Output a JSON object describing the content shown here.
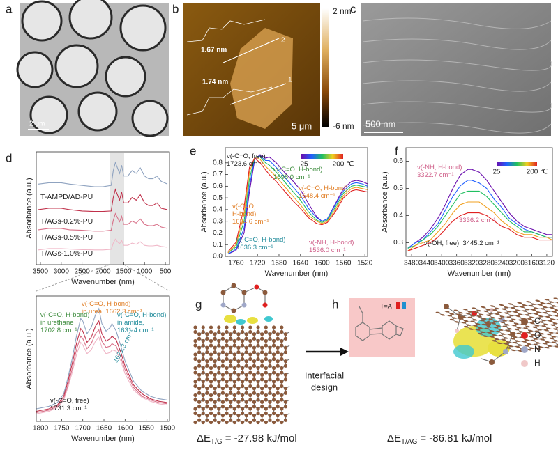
{
  "panels": {
    "a": {
      "label": "a",
      "scale": "2 μm"
    },
    "b": {
      "label": "b",
      "scale": "5 μm",
      "colorbar_max": "2 nm",
      "colorbar_min": "-6 nm",
      "height_1": "1.67 nm",
      "height_2": "1.74 nm",
      "line_1": "1",
      "line_2": "2"
    },
    "c": {
      "label": "c",
      "scale": "500 nm"
    },
    "d": {
      "label": "d"
    },
    "e": {
      "label": "e"
    },
    "f": {
      "label": "f"
    },
    "g": {
      "label": "g",
      "energy": {
        "symbol": "ΔE",
        "subscript": "T/G",
        "value": "= -27.98 kJ/mol"
      }
    },
    "arrow_text": [
      "Interfacial",
      "design"
    ],
    "h": {
      "label": "h",
      "inset": "T=A",
      "energy": {
        "symbol": "ΔE",
        "subscript": "T/AG",
        "value": "= -86.81 kJ/mol"
      },
      "legend": [
        "C",
        "O",
        "N",
        "H"
      ]
    }
  },
  "chart_data": [
    {
      "type": "line",
      "x_label": "Wavenumber (nm)",
      "y_label": "Absorbance (a.u.)",
      "x": [
        3550,
        3300,
        3000,
        2800,
        2500,
        2200,
        2000,
        1800,
        1750,
        1700,
        1650,
        1600,
        1550,
        1500,
        1400,
        1300,
        1200,
        1100,
        1000,
        900,
        800,
        700,
        600,
        450
      ],
      "xlim": [
        3600,
        400
      ],
      "xticks": [
        3500,
        3000,
        2500,
        2000,
        1500,
        1000,
        500
      ],
      "ylim": [
        0,
        4.2
      ],
      "series": [
        {
          "name": "T-AMPD/AD-PU",
          "color": "#8fa3c0",
          "values": [
            3.0,
            3.05,
            3.05,
            3.0,
            2.95,
            2.9,
            2.9,
            2.95,
            3.5,
            3.8,
            3.6,
            3.4,
            3.7,
            3.3,
            3.3,
            3.5,
            3.4,
            3.6,
            3.3,
            3.2,
            3.2,
            3.3,
            3.1,
            3.0
          ]
        },
        {
          "name": "T/AGs-0.2%-PU",
          "color": "#c0304a",
          "values": [
            2.05,
            2.1,
            2.1,
            2.05,
            2.0,
            1.98,
            1.98,
            2.0,
            2.5,
            2.8,
            2.6,
            2.4,
            2.7,
            2.3,
            2.3,
            2.5,
            2.4,
            2.6,
            2.3,
            2.2,
            2.2,
            2.3,
            2.1,
            2.05
          ]
        },
        {
          "name": "T/AGs-0.5%-PU",
          "color": "#d87088",
          "values": [
            1.3,
            1.35,
            1.35,
            1.3,
            1.28,
            1.25,
            1.25,
            1.28,
            1.65,
            1.9,
            1.75,
            1.6,
            1.8,
            1.5,
            1.5,
            1.62,
            1.55,
            1.7,
            1.5,
            1.45,
            1.45,
            1.5,
            1.4,
            1.35
          ]
        },
        {
          "name": "T/AGs-1.0%-PU",
          "color": "#f0b8c8",
          "values": [
            0.55,
            0.6,
            0.6,
            0.58,
            0.56,
            0.55,
            0.55,
            0.57,
            0.8,
            0.95,
            0.85,
            0.78,
            0.9,
            0.72,
            0.72,
            0.8,
            0.76,
            0.85,
            0.72,
            0.7,
            0.7,
            0.72,
            0.68,
            0.65
          ]
        }
      ]
    },
    {
      "type": "line",
      "x_label": "Wavenumber (nm)",
      "y_label": "Absorbance (a.u.)",
      "x": [
        1810,
        1780,
        1760,
        1745,
        1735,
        1725,
        1715,
        1705,
        1700,
        1690,
        1680,
        1670,
        1662,
        1655,
        1645,
        1635,
        1631,
        1621,
        1610,
        1600,
        1580,
        1560,
        1540,
        1520,
        1500
      ],
      "xlim": [
        1810,
        1495
      ],
      "xticks": [
        1800,
        1750,
        1700,
        1650,
        1600,
        1550,
        1500
      ],
      "ylim": [
        0,
        1
      ],
      "series": [
        {
          "color": "#8fa3c0",
          "values": [
            0.1,
            0.12,
            0.15,
            0.22,
            0.35,
            0.5,
            0.68,
            0.82,
            0.8,
            0.7,
            0.75,
            0.85,
            0.9,
            0.78,
            0.72,
            0.75,
            0.78,
            0.72,
            0.6,
            0.48,
            0.32,
            0.24,
            0.2,
            0.18,
            0.17
          ]
        },
        {
          "color": "#c0304a",
          "values": [
            0.08,
            0.1,
            0.13,
            0.2,
            0.32,
            0.46,
            0.62,
            0.74,
            0.72,
            0.63,
            0.67,
            0.76,
            0.8,
            0.7,
            0.64,
            0.66,
            0.68,
            0.65,
            0.55,
            0.44,
            0.29,
            0.22,
            0.18,
            0.16,
            0.15
          ]
        },
        {
          "color": "#d87088",
          "values": [
            0.07,
            0.09,
            0.12,
            0.18,
            0.29,
            0.42,
            0.57,
            0.68,
            0.66,
            0.58,
            0.62,
            0.7,
            0.73,
            0.64,
            0.59,
            0.6,
            0.62,
            0.6,
            0.51,
            0.41,
            0.27,
            0.2,
            0.17,
            0.15,
            0.14
          ]
        },
        {
          "color": "#f0b8c8",
          "values": [
            0.06,
            0.08,
            0.11,
            0.17,
            0.27,
            0.39,
            0.53,
            0.63,
            0.61,
            0.54,
            0.57,
            0.64,
            0.67,
            0.59,
            0.54,
            0.55,
            0.57,
            0.56,
            0.48,
            0.38,
            0.25,
            0.19,
            0.16,
            0.14,
            0.13
          ]
        }
      ],
      "annotations": [
        {
          "color": "#3a8a3a",
          "lines": [
            "ν(-C=O, H-bond)",
            "in urethane",
            "1702.8 cm⁻¹"
          ]
        },
        {
          "color": "#e07b20",
          "lines": [
            "ν(-C=O, H-bond)",
            "in urea, 1662.3 cm⁻¹"
          ]
        },
        {
          "color": "#1f8a9a",
          "lines": [
            "ν(-C=O, H-bond)",
            "in amide,",
            "1631.4 cm⁻¹"
          ]
        },
        {
          "color": "#1f8a9a",
          "lines": [
            "1621.3 cm⁻¹"
          ]
        },
        {
          "color": "#222222",
          "lines": [
            "ν(-C=O, free)",
            "1731.3 cm⁻¹"
          ]
        }
      ]
    },
    {
      "type": "line",
      "x_label": "Wavenumber (nm)",
      "y_label": "Absorbance (a.u.)",
      "colorbar_labels": [
        "25",
        "200 ℃"
      ],
      "x": [
        1775,
        1760,
        1745,
        1735,
        1725,
        1715,
        1705,
        1698,
        1685,
        1670,
        1655,
        1640,
        1625,
        1610,
        1600,
        1590,
        1575,
        1560,
        1545,
        1536,
        1525,
        1515
      ],
      "xlim": [
        1780,
        1515
      ],
      "xticks": [
        1760,
        1720,
        1680,
        1640,
        1600,
        1560,
        1520
      ],
      "ylim": [
        0,
        0.93
      ],
      "yticks": [
        {
          "value": 0,
          "label": "0.0"
        },
        0.1,
        0.2,
        0.3,
        0.4,
        0.5,
        0.6,
        0.7,
        0.8
      ],
      "series": [
        {
          "color": "#6a0dad",
          "values": [
            0.02,
            0.05,
            0.2,
            0.55,
            0.83,
            0.87,
            0.84,
            0.85,
            0.8,
            0.72,
            0.65,
            0.57,
            0.45,
            0.34,
            0.3,
            0.32,
            0.45,
            0.58,
            0.64,
            0.65,
            0.64,
            0.62
          ]
        },
        {
          "color": "#2060ff",
          "values": [
            0.02,
            0.06,
            0.24,
            0.6,
            0.84,
            0.86,
            0.82,
            0.82,
            0.76,
            0.68,
            0.6,
            0.52,
            0.41,
            0.33,
            0.3,
            0.32,
            0.44,
            0.56,
            0.62,
            0.63,
            0.62,
            0.6
          ]
        },
        {
          "color": "#20c060",
          "values": [
            0.03,
            0.08,
            0.3,
            0.66,
            0.85,
            0.85,
            0.8,
            0.78,
            0.72,
            0.64,
            0.56,
            0.48,
            0.38,
            0.31,
            0.29,
            0.31,
            0.42,
            0.54,
            0.6,
            0.61,
            0.6,
            0.59
          ]
        },
        {
          "color": "#f0a020",
          "values": [
            0.03,
            0.1,
            0.36,
            0.72,
            0.85,
            0.83,
            0.77,
            0.74,
            0.68,
            0.6,
            0.52,
            0.44,
            0.35,
            0.3,
            0.28,
            0.3,
            0.4,
            0.52,
            0.58,
            0.59,
            0.58,
            0.57
          ]
        },
        {
          "color": "#e02020",
          "values": [
            0.04,
            0.12,
            0.42,
            0.76,
            0.84,
            0.8,
            0.74,
            0.7,
            0.64,
            0.56,
            0.48,
            0.41,
            0.33,
            0.28,
            0.27,
            0.29,
            0.38,
            0.5,
            0.56,
            0.57,
            0.56,
            0.55
          ]
        }
      ],
      "annotations": [
        {
          "color": "#222222",
          "lines": [
            "ν(-C=O, free)",
            "1723.6 cm⁻¹"
          ]
        },
        {
          "color": "#3a8a3a",
          "lines": [
            "ν(-C=O, H-bond)",
            "1698.0 cm⁻¹"
          ]
        },
        {
          "color": "#e07b20",
          "lines": [
            "ν(-C=O, H-bond)",
            "1648.4 cm⁻¹"
          ]
        },
        {
          "color": "#e07b20",
          "lines": [
            "ν(-C=O,",
            "H-bond)",
            "1654.6 cm⁻¹"
          ]
        },
        {
          "color": "#1f8a9a",
          "lines": [
            "ν(-C=O, H-bond)",
            "1636.3 cm⁻¹"
          ]
        },
        {
          "color": "#d0608a",
          "lines": [
            "ν(-NH, H-bond)",
            "1536.0 cm⁻¹"
          ]
        }
      ]
    },
    {
      "type": "line",
      "x_label": "Wavenumber (nm)",
      "y_label": "Absorbance (a.u.)",
      "colorbar_labels": [
        "25",
        "200 ℃"
      ],
      "x": [
        3490,
        3470,
        3450,
        3430,
        3410,
        3390,
        3370,
        3350,
        3330,
        3320,
        3300,
        3280,
        3260,
        3240,
        3220,
        3200,
        3180,
        3160,
        3140,
        3120,
        3105
      ],
      "xlim": [
        3495,
        3105
      ],
      "xticks": [
        3480,
        3440,
        3400,
        3360,
        3320,
        3280,
        3240,
        3200,
        3160,
        3120
      ],
      "ylim": [
        0.25,
        0.65
      ],
      "yticks": [
        0.3,
        0.4,
        0.5,
        0.6
      ],
      "series": [
        {
          "color": "#6a0dad",
          "values": [
            0.28,
            0.3,
            0.32,
            0.35,
            0.39,
            0.44,
            0.5,
            0.55,
            0.57,
            0.57,
            0.56,
            0.53,
            0.49,
            0.45,
            0.41,
            0.38,
            0.36,
            0.35,
            0.34,
            0.33,
            0.33
          ]
        },
        {
          "color": "#2060ff",
          "values": [
            0.28,
            0.3,
            0.31,
            0.34,
            0.37,
            0.42,
            0.47,
            0.51,
            0.53,
            0.53,
            0.52,
            0.5,
            0.46,
            0.43,
            0.39,
            0.37,
            0.35,
            0.34,
            0.33,
            0.32,
            0.32
          ]
        },
        {
          "color": "#20c060",
          "values": [
            0.28,
            0.29,
            0.31,
            0.33,
            0.36,
            0.4,
            0.44,
            0.48,
            0.49,
            0.49,
            0.49,
            0.47,
            0.44,
            0.41,
            0.38,
            0.36,
            0.34,
            0.34,
            0.33,
            0.32,
            0.32
          ]
        },
        {
          "color": "#f0a020",
          "values": [
            0.27,
            0.29,
            0.3,
            0.31,
            0.34,
            0.37,
            0.41,
            0.44,
            0.45,
            0.45,
            0.45,
            0.43,
            0.41,
            0.38,
            0.36,
            0.34,
            0.33,
            0.33,
            0.32,
            0.32,
            0.31
          ]
        },
        {
          "color": "#e02020",
          "values": [
            0.27,
            0.28,
            0.29,
            0.3,
            0.32,
            0.35,
            0.38,
            0.4,
            0.41,
            0.41,
            0.41,
            0.4,
            0.38,
            0.36,
            0.35,
            0.33,
            0.32,
            0.32,
            0.31,
            0.31,
            0.31
          ]
        }
      ],
      "annotations": [
        {
          "color": "#d0608a",
          "lines": [
            "ν(-NH, H-bond)",
            "3322.7 cm⁻¹"
          ]
        },
        {
          "color": "#d0608a",
          "lines": [
            "3336.2 cm⁻¹"
          ]
        },
        {
          "color": "#222222",
          "lines": [
            "ν(-OH, free), 3445.2 cm⁻¹"
          ]
        }
      ]
    }
  ]
}
